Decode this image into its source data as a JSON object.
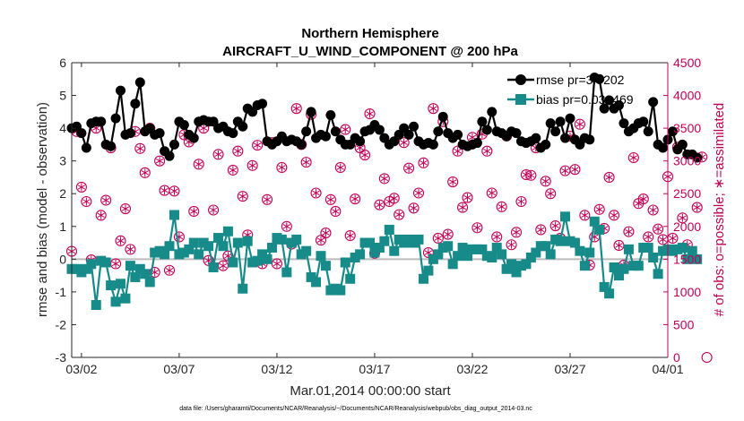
{
  "chart_data": {
    "type": "line",
    "title": "Northern Hemisphere",
    "subtitle": "AIRCRAFT_U_WIND_COMPONENT @ 200 hPa",
    "xlabel": "Mar.01,2014 00:00:00 start",
    "ylabel": "rmse and bias (model - observation)",
    "ylabel_right": "# of obs: o=possible; ∗=assimilated",
    "x_tick_labels": [
      "03/02",
      "03/07",
      "03/12",
      "03/17",
      "03/22",
      "03/27",
      "04/01"
    ],
    "x_tick_values": [
      1,
      6,
      11,
      16,
      21,
      26,
      31
    ],
    "xlim": [
      0.5,
      31.0
    ],
    "ylim": [
      -3,
      6
    ],
    "y_ticks": [
      -3,
      -2,
      -1,
      0,
      1,
      2,
      3,
      4,
      5,
      6
    ],
    "ylim_right": [
      0,
      4500
    ],
    "y_ticks_right": [
      0,
      500,
      1000,
      1500,
      2000,
      2500,
      3000,
      3500,
      4000,
      4500
    ],
    "legend": {
      "location": "top-right",
      "entries": [
        "rmse pr=3.9202",
        "bias pr=0.032469"
      ]
    },
    "colors": {
      "rmse": "#000000",
      "bias": "#168b8a",
      "obs": "#c00057",
      "zero_line": "#bbbbbb"
    },
    "footnote": "data file: /Users/gharamti/Documents/NCAR/Reanalysis/~/Documents/NCAR/Reanalysis/webpub/obs_diag_output_2014-03.nc",
    "series": [
      {
        "name": "rmse",
        "values": [
          4.0,
          4.05,
          3.85,
          3.4,
          4.15,
          4.2,
          4.2,
          3.5,
          3.45,
          4.3,
          5.15,
          3.8,
          3.85,
          4.75,
          5.4,
          3.9,
          4.0,
          3.8,
          3.85,
          3.3,
          3.15,
          3.5,
          4.2,
          4.1,
          3.8,
          3.7,
          4.2,
          4.25,
          4.2,
          4.2,
          4.0,
          4.05,
          3.9,
          3.85,
          4.2,
          4.05,
          4.6,
          4.5,
          4.7,
          4.75,
          3.6,
          3.5,
          3.6,
          3.75,
          3.6,
          3.65,
          3.6,
          3.5,
          3.9,
          4.5,
          3.7,
          3.8,
          3.75,
          4.4,
          3.9,
          3.65,
          3.5,
          3.5,
          3.7,
          3.6,
          3.9,
          3.95,
          4.1,
          3.95,
          3.7,
          3.5,
          3.6,
          3.8,
          4.0,
          3.8,
          4.05,
          3.6,
          3.5,
          3.55,
          3.5,
          3.9,
          4.35,
          3.85,
          3.7,
          3.8,
          3.5,
          3.45,
          3.5,
          3.55,
          4.2,
          3.95,
          4.5,
          3.9,
          3.85,
          3.75,
          3.9,
          3.85,
          3.6,
          3.55,
          3.6,
          3.7,
          3.4,
          3.5,
          4.15,
          3.9,
          4.2,
          3.7,
          4.3,
          3.65,
          3.5,
          3.7,
          3.65,
          5.55,
          5.5,
          4.6,
          4.85,
          4.6,
          4.7,
          4.15,
          3.9,
          4.0,
          4.15,
          4.2,
          3.9,
          4.8,
          3.5,
          3.4,
          3.65,
          3.9,
          3.35,
          3.5,
          3.2,
          3.2,
          3.1
        ]
      },
      {
        "name": "bias",
        "values": [
          -0.3,
          -0.3,
          -0.4,
          -0.3,
          -0.15,
          -1.4,
          -0.05,
          -0.1,
          -0.8,
          -1.3,
          -0.75,
          -1.2,
          -0.2,
          -0.55,
          -0.3,
          -0.45,
          -0.7,
          0.2,
          0.25,
          0.15,
          0.4,
          1.35,
          0.15,
          0.2,
          0.3,
          0.5,
          0.15,
          0.5,
          0.4,
          -0.25,
          0.65,
          0.4,
          0.85,
          -0.1,
          0.5,
          -0.9,
          0.55,
          -0.1,
          -0.05,
          0.15,
          0.0,
          0.35,
          0.65,
          0.6,
          -0.4,
          0.5,
          0.6,
          0.15,
          0.25,
          -0.55,
          -0.7,
          0.1,
          -0.2,
          -0.95,
          -0.9,
          -0.95,
          -0.1,
          -0.6,
          0.05,
          0.15,
          0.5,
          0.5,
          0.2,
          0.35,
          0.55,
          0.9,
          0.25,
          0.6,
          0.5,
          0.6,
          0.5,
          0.6,
          -0.6,
          -0.35,
          0.0,
          0.15,
          0.35,
          0.4,
          -0.15,
          0.1,
          0.35,
          0.1,
          0.3,
          0.3,
          0.3,
          0.1,
          0.05,
          0.35,
          0.15,
          -0.3,
          -0.15,
          -0.4,
          -0.2,
          -0.15,
          0.05,
          0.2,
          0.4,
          0.4,
          0.15,
          0.6,
          0.55,
          1.3,
          0.55,
          0.5,
          0.25,
          -0.2,
          0.2,
          1.15,
          0.9,
          -0.85,
          -1.05,
          -0.25,
          -0.5,
          -0.3,
          0.3,
          -0.2,
          -0.2,
          0.35,
          0.35,
          0.05,
          -0.45,
          0.25,
          0.3,
          0.25,
          0.3,
          0.35,
          0.0,
          0.25,
          0.0
        ]
      },
      {
        "name": "obs_possible",
        "values": [
          1620,
          3450,
          2600,
          2380,
          1490,
          3500,
          2170,
          2400,
          3200,
          1430,
          1780,
          2270,
          1650,
          3450,
          3190,
          2820,
          3500,
          1300,
          3000,
          2550,
          1330,
          2540,
          1840,
          3400,
          3290,
          2230,
          2950,
          3500,
          1480,
          2250,
          3100,
          1400,
          1550,
          2860,
          3150,
          2460,
          1870,
          2930,
          3240,
          1430,
          2410,
          3280,
          1430,
          2900,
          2000,
          1730,
          3800,
          3250,
          2980,
          3710,
          2510,
          1790,
          1900,
          2410,
          2230,
          2900,
          3480,
          1860,
          2420,
          3200,
          3090,
          3720,
          1590,
          2330,
          2730,
          2380,
          2430,
          2180,
          3280,
          2890,
          2280,
          2510,
          2970,
          1600,
          3800,
          1820,
          3600,
          1880,
          2680,
          3150,
          2290,
          2440,
          3360,
          1980,
          3410,
          3150,
          2510,
          1840,
          2300,
          3380,
          1720,
          1910,
          2380,
          2790,
          2780,
          3200,
          1950,
          2690,
          2500,
          2010,
          1820,
          2850,
          3380,
          2870,
          3560,
          2170,
          1410,
          1840,
          2260,
          1970,
          2750,
          2170,
          1710,
          1410,
          1920,
          3050,
          2350,
          2420,
          1840,
          2250,
          1960,
          1800,
          2760,
          1820,
          3210,
          2130,
          1720,
          1530,
          2290,
          3060,
          0
        ]
      },
      {
        "name": "obs_assimilated",
        "values": [
          1620,
          3450,
          2600,
          2380,
          1490,
          3500,
          2170,
          2400,
          3200,
          1430,
          1780,
          2270,
          1650,
          3450,
          3190,
          2820,
          3500,
          1300,
          3000,
          2550,
          1330,
          2540,
          1840,
          3400,
          3290,
          2230,
          2950,
          3500,
          1480,
          2250,
          3100,
          1400,
          1550,
          2860,
          3150,
          2460,
          1870,
          2930,
          3240,
          1430,
          2410,
          3280,
          1430,
          2900,
          2000,
          1730,
          3800,
          3250,
          2980,
          3710,
          2510,
          1790,
          1900,
          2410,
          2230,
          2900,
          3480,
          1860,
          2420,
          3200,
          3090,
          3720,
          1590,
          2330,
          2730,
          2380,
          2430,
          2180,
          3280,
          2890,
          2280,
          2510,
          2970,
          1600,
          3800,
          1820,
          3600,
          1880,
          2680,
          3150,
          2290,
          2440,
          3360,
          1980,
          3410,
          3150,
          2510,
          1840,
          2300,
          3380,
          1720,
          1910,
          2380,
          2790,
          2780,
          3200,
          1950,
          2690,
          2500,
          2010,
          1820,
          2850,
          3380,
          2870,
          3560,
          2170,
          1410,
          1840,
          2260,
          1970,
          2750,
          2170,
          1710,
          1410,
          1920,
          3050,
          2350,
          2420,
          1840,
          2250,
          1960,
          1800,
          2760,
          1820,
          3210,
          2130,
          1720,
          1530,
          2290,
          3060,
          null
        ]
      }
    ]
  }
}
